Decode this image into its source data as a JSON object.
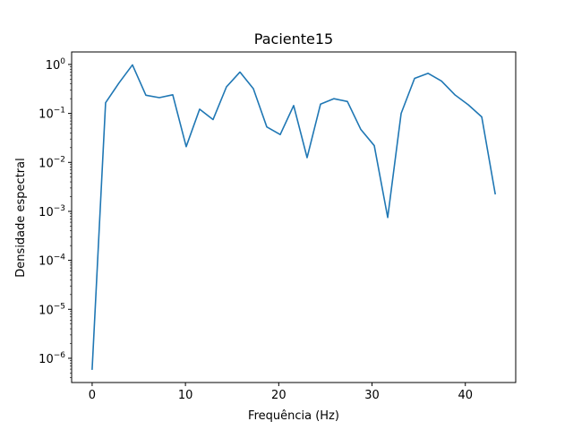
{
  "chart_data": {
    "type": "line",
    "title": "Paciente15",
    "xlabel": "Frequência (Hz)",
    "ylabel": "Densidade espectral",
    "yscale": "log",
    "xlim": [
      -2.2,
      45.4
    ],
    "ylim": [
      3.2e-07,
      1.8
    ],
    "xticks": [
      0,
      10,
      20,
      30,
      40
    ],
    "yticks": [
      {
        "value": 1e-06,
        "base": "10",
        "exp": "−6"
      },
      {
        "value": 1e-05,
        "base": "10",
        "exp": "−5"
      },
      {
        "value": 0.0001,
        "base": "10",
        "exp": "−4"
      },
      {
        "value": 0.001,
        "base": "10",
        "exp": "−3"
      },
      {
        "value": 0.01,
        "base": "10",
        "exp": "−2"
      },
      {
        "value": 0.1,
        "base": "10",
        "exp": "−1"
      },
      {
        "value": 1,
        "base": "10",
        "exp": "0"
      }
    ],
    "grid": false,
    "color": "#1f77b4",
    "series": [
      {
        "x": [
          0,
          1.44,
          2.88,
          4.32,
          5.76,
          7.2,
          8.64,
          10.08,
          11.52,
          12.96,
          14.4,
          15.84,
          17.28,
          18.72,
          20.16,
          21.6,
          23.04,
          24.48,
          25.92,
          27.36,
          28.8,
          30.24,
          31.68,
          33.12,
          34.56,
          36.0,
          37.44,
          38.88,
          40.32,
          41.76,
          43.2
        ],
        "y": [
          6e-07,
          0.165,
          0.42,
          0.98,
          0.235,
          0.21,
          0.24,
          0.021,
          0.122,
          0.075,
          0.35,
          0.7,
          0.32,
          0.053,
          0.037,
          0.145,
          0.0125,
          0.155,
          0.2,
          0.175,
          0.047,
          0.022,
          0.00075,
          0.1,
          0.52,
          0.66,
          0.46,
          0.24,
          0.15,
          0.085,
          0.0023
        ]
      }
    ]
  }
}
